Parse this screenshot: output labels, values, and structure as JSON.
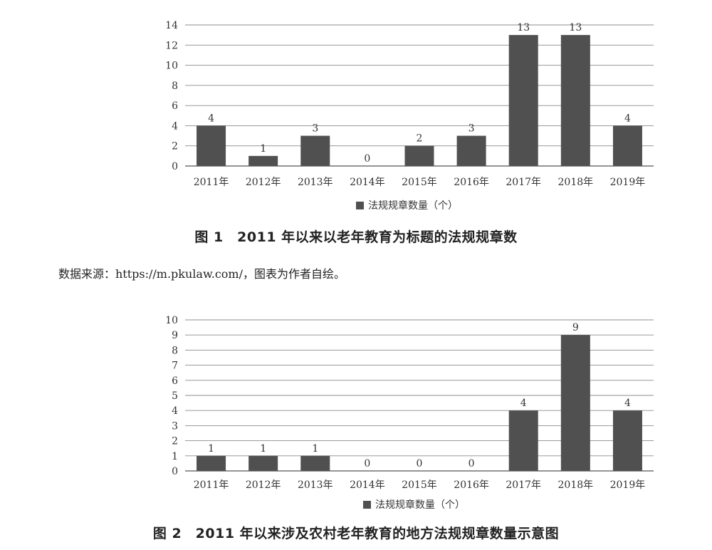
{
  "chart_data": [
    {
      "type": "bar",
      "categories": [
        "2011年",
        "2012年",
        "2013年",
        "2014年",
        "2015年",
        "2016年",
        "2017年",
        "2018年",
        "2019年"
      ],
      "series": [
        {
          "name": "法规规章数量（个）",
          "values": [
            4,
            1,
            3,
            0,
            2,
            3,
            13,
            13,
            4
          ]
        }
      ],
      "ylim": [
        0,
        14
      ],
      "yticks": [
        0,
        2,
        4,
        6,
        8,
        10,
        12,
        14
      ],
      "grid": true,
      "legend": "bottom",
      "bar_color": "#505050",
      "grid_color": "#8c8c8c"
    },
    {
      "type": "bar",
      "categories": [
        "2011年",
        "2012年",
        "2013年",
        "2014年",
        "2015年",
        "2016年",
        "2017年",
        "2018年",
        "2019年"
      ],
      "series": [
        {
          "name": "法规规章数量（个）",
          "values": [
            1,
            1,
            1,
            0,
            0,
            0,
            4,
            9,
            4
          ]
        }
      ],
      "ylim": [
        0,
        10
      ],
      "yticks": [
        0,
        1,
        2,
        3,
        4,
        5,
        6,
        7,
        8,
        9,
        10
      ],
      "grid": true,
      "legend": "bottom",
      "bar_color": "#505050",
      "grid_color": "#8c8c8c"
    }
  ],
  "captions": {
    "figure1": "图 1　2011 年以来以老年教育为标题的法规规章数",
    "figure2": "图 2　2011 年以来涉及农村老年教育的地方法规规章数量示意图"
  },
  "source_note": "数据来源：https://m.pkulaw.com/，图表为作者自绘。"
}
